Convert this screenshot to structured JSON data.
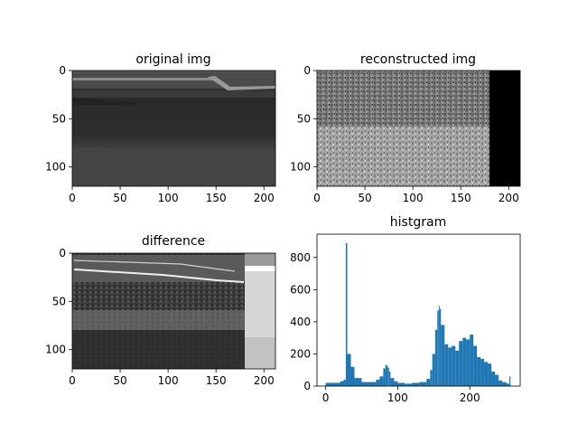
{
  "figure_titles": {
    "original": "original img",
    "reconstructed": "reconstructed img",
    "difference": "difference",
    "histogram": "histgram"
  },
  "chart_data": [
    {
      "type": "image",
      "title": "original img",
      "xlim": [
        0,
        212
      ],
      "ylim": [
        120,
        0
      ],
      "x_ticks": [
        "0",
        "50",
        "100",
        "150",
        "200"
      ],
      "y_ticks": [
        "0",
        "50",
        "100"
      ],
      "colormap": "gray"
    },
    {
      "type": "image",
      "title": "reconstructed img",
      "xlim": [
        0,
        212
      ],
      "ylim": [
        120,
        0
      ],
      "x_ticks": [
        "0",
        "50",
        "100",
        "150",
        "200"
      ],
      "y_ticks": [
        "0",
        "50",
        "100"
      ],
      "colormap": "gray"
    },
    {
      "type": "image",
      "title": "difference",
      "xlim": [
        0,
        212
      ],
      "ylim": [
        120,
        0
      ],
      "x_ticks": [
        "0",
        "50",
        "100",
        "150",
        "200"
      ],
      "y_ticks": [
        "0",
        "50",
        "100"
      ],
      "colormap": "gray"
    },
    {
      "type": "bar",
      "title": "histgram",
      "x_ticks": [
        "0",
        "100",
        "200"
      ],
      "y_ticks": [
        "0",
        "200",
        "400",
        "600",
        "800"
      ],
      "xlim": [
        -12,
        270
      ],
      "ylim": [
        0,
        945
      ],
      "bar_color": "#1f77b4",
      "x": [
        0,
        10,
        20,
        25,
        28,
        30,
        35,
        40,
        50,
        60,
        70,
        75,
        80,
        83,
        86,
        88,
        90,
        95,
        100,
        110,
        120,
        130,
        140,
        145,
        148,
        152,
        155,
        157,
        158,
        160,
        165,
        170,
        175,
        180,
        185,
        190,
        195,
        200,
        205,
        210,
        215,
        220,
        225,
        230,
        235,
        240,
        245,
        250,
        252,
        255
      ],
      "values": [
        20,
        20,
        30,
        40,
        890,
        200,
        120,
        50,
        25,
        25,
        40,
        60,
        110,
        130,
        115,
        90,
        50,
        30,
        20,
        15,
        20,
        25,
        45,
        100,
        200,
        350,
        470,
        500,
        480,
        380,
        260,
        240,
        250,
        220,
        280,
        300,
        290,
        320,
        250,
        180,
        170,
        150,
        140,
        90,
        70,
        35,
        25,
        20,
        15,
        60
      ]
    }
  ]
}
